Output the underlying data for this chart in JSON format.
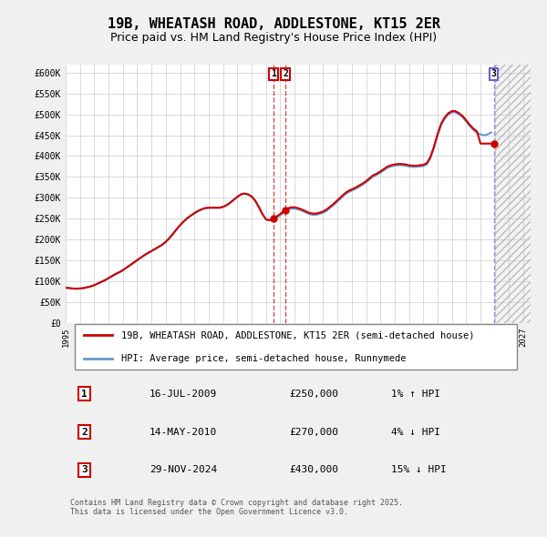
{
  "title": "19B, WHEATASH ROAD, ADDLESTONE, KT15 2ER",
  "subtitle": "Price paid vs. HM Land Registry's House Price Index (HPI)",
  "ylim": [
    0,
    620000
  ],
  "yticks": [
    0,
    50000,
    100000,
    150000,
    200000,
    250000,
    300000,
    350000,
    400000,
    450000,
    500000,
    550000,
    600000
  ],
  "ytick_labels": [
    "£0",
    "£50K",
    "£100K",
    "£150K",
    "£200K",
    "£250K",
    "£300K",
    "£350K",
    "£400K",
    "£450K",
    "£500K",
    "£550K",
    "£600K"
  ],
  "xlim_start": 1995.0,
  "xlim_end": 2027.5,
  "xticks": [
    1995,
    1996,
    1997,
    1998,
    1999,
    2000,
    2001,
    2002,
    2003,
    2004,
    2005,
    2006,
    2007,
    2008,
    2009,
    2010,
    2011,
    2012,
    2013,
    2014,
    2015,
    2016,
    2017,
    2018,
    2019,
    2020,
    2021,
    2022,
    2023,
    2024,
    2025,
    2026,
    2027
  ],
  "bg_color": "#f0f0f0",
  "plot_bg": "#ffffff",
  "grid_color": "#cccccc",
  "hpi_color": "#6699cc",
  "price_color": "#cc0000",
  "future_hatch_color": "#dddddd",
  "transaction1_date": 2009.54,
  "transaction2_date": 2010.37,
  "transaction3_date": 2024.92,
  "transaction1_price": 250000,
  "transaction2_price": 270000,
  "transaction3_price": 430000,
  "legend_label1": "19B, WHEATASH ROAD, ADDLESTONE, KT15 2ER (semi-detached house)",
  "legend_label2": "HPI: Average price, semi-detached house, Runnymede",
  "annotation1_label": "1",
  "annotation1_text": "16-JUL-2009",
  "annotation1_price": "£250,000",
  "annotation1_hpi": "1% ↑ HPI",
  "annotation2_label": "2",
  "annotation2_text": "14-MAY-2010",
  "annotation2_price": "£270,000",
  "annotation2_hpi": "4% ↓ HPI",
  "annotation3_label": "3",
  "annotation3_text": "29-NOV-2024",
  "annotation3_price": "£430,000",
  "annotation3_hpi": "15% ↓ HPI",
  "footer_text": "Contains HM Land Registry data © Crown copyright and database right 2025.\nThis data is licensed under the Open Government Licence v3.0.",
  "hpi_data_x": [
    1995.0,
    1995.25,
    1995.5,
    1995.75,
    1996.0,
    1996.25,
    1996.5,
    1996.75,
    1997.0,
    1997.25,
    1997.5,
    1997.75,
    1998.0,
    1998.25,
    1998.5,
    1998.75,
    1999.0,
    1999.25,
    1999.5,
    1999.75,
    2000.0,
    2000.25,
    2000.5,
    2000.75,
    2001.0,
    2001.25,
    2001.5,
    2001.75,
    2002.0,
    2002.25,
    2002.5,
    2002.75,
    2003.0,
    2003.25,
    2003.5,
    2003.75,
    2004.0,
    2004.25,
    2004.5,
    2004.75,
    2005.0,
    2005.25,
    2005.5,
    2005.75,
    2006.0,
    2006.25,
    2006.5,
    2006.75,
    2007.0,
    2007.25,
    2007.5,
    2007.75,
    2008.0,
    2008.25,
    2008.5,
    2008.75,
    2009.0,
    2009.25,
    2009.5,
    2009.75,
    2010.0,
    2010.25,
    2010.5,
    2010.75,
    2011.0,
    2011.25,
    2011.5,
    2011.75,
    2012.0,
    2012.25,
    2012.5,
    2012.75,
    2013.0,
    2013.25,
    2013.5,
    2013.75,
    2014.0,
    2014.25,
    2014.5,
    2014.75,
    2015.0,
    2015.25,
    2015.5,
    2015.75,
    2016.0,
    2016.25,
    2016.5,
    2016.75,
    2017.0,
    2017.25,
    2017.5,
    2017.75,
    2018.0,
    2018.25,
    2018.5,
    2018.75,
    2019.0,
    2019.25,
    2019.5,
    2019.75,
    2020.0,
    2020.25,
    2020.5,
    2020.75,
    2021.0,
    2021.25,
    2021.5,
    2021.75,
    2022.0,
    2022.25,
    2022.5,
    2022.75,
    2023.0,
    2023.25,
    2023.5,
    2023.75,
    2024.0,
    2024.25,
    2024.5,
    2024.75
  ],
  "hpi_data_y": [
    84000,
    83000,
    82000,
    81500,
    82000,
    83000,
    85000,
    87000,
    90000,
    94000,
    98000,
    102000,
    107000,
    112000,
    117000,
    121000,
    126000,
    132000,
    138000,
    144000,
    150000,
    156000,
    162000,
    167000,
    172000,
    177000,
    182000,
    187000,
    194000,
    203000,
    213000,
    224000,
    234000,
    243000,
    251000,
    257000,
    263000,
    268000,
    272000,
    275000,
    276000,
    276000,
    276000,
    276000,
    278000,
    282000,
    288000,
    295000,
    302000,
    308000,
    310000,
    308000,
    303000,
    293000,
    278000,
    261000,
    248000,
    246000,
    247000,
    252000,
    258000,
    265000,
    271000,
    274000,
    274000,
    272000,
    269000,
    265000,
    261000,
    259000,
    259000,
    261000,
    264000,
    269000,
    276000,
    283000,
    291000,
    299000,
    307000,
    313000,
    317000,
    321000,
    326000,
    331000,
    337000,
    344000,
    351000,
    355000,
    360000,
    366000,
    372000,
    375000,
    377000,
    378000,
    378000,
    377000,
    375000,
    374000,
    374000,
    375000,
    376000,
    380000,
    395000,
    420000,
    450000,
    475000,
    490000,
    500000,
    505000,
    505000,
    500000,
    493000,
    483000,
    472000,
    463000,
    456000,
    452000,
    450000,
    452000,
    457000
  ],
  "price_data_x": [
    1995.0,
    1995.25,
    1995.5,
    1995.75,
    1996.0,
    1996.25,
    1996.5,
    1996.75,
    1997.0,
    1997.25,
    1997.5,
    1997.75,
    1998.0,
    1998.25,
    1998.5,
    1998.75,
    1999.0,
    1999.25,
    1999.5,
    1999.75,
    2000.0,
    2000.25,
    2000.5,
    2000.75,
    2001.0,
    2001.25,
    2001.5,
    2001.75,
    2002.0,
    2002.25,
    2002.5,
    2002.75,
    2003.0,
    2003.25,
    2003.5,
    2003.75,
    2004.0,
    2004.25,
    2004.5,
    2004.75,
    2005.0,
    2005.25,
    2005.5,
    2005.75,
    2006.0,
    2006.25,
    2006.5,
    2006.75,
    2007.0,
    2007.25,
    2007.5,
    2007.75,
    2008.0,
    2008.25,
    2008.5,
    2008.75,
    2009.0,
    2009.25,
    2009.5,
    2009.75,
    2010.0,
    2010.25,
    2010.5,
    2010.75,
    2011.0,
    2011.25,
    2011.5,
    2011.75,
    2012.0,
    2012.25,
    2012.5,
    2012.75,
    2013.0,
    2013.25,
    2013.5,
    2013.75,
    2014.0,
    2014.25,
    2014.5,
    2014.75,
    2015.0,
    2015.25,
    2015.5,
    2015.75,
    2016.0,
    2016.25,
    2016.5,
    2016.75,
    2017.0,
    2017.25,
    2017.5,
    2017.75,
    2018.0,
    2018.25,
    2018.5,
    2018.75,
    2019.0,
    2019.25,
    2019.5,
    2019.75,
    2020.0,
    2020.25,
    2020.5,
    2020.75,
    2021.0,
    2021.25,
    2021.5,
    2021.75,
    2022.0,
    2022.25,
    2022.5,
    2022.75,
    2023.0,
    2023.25,
    2023.5,
    2023.75,
    2024.0,
    2024.25,
    2024.5,
    2024.75
  ],
  "price_data_y": [
    84000,
    83000,
    82000,
    81500,
    82000,
    83000,
    85000,
    87000,
    90000,
    94000,
    98000,
    102000,
    107000,
    112000,
    117000,
    121000,
    126000,
    132000,
    138000,
    144000,
    150000,
    156000,
    162000,
    167000,
    172000,
    177000,
    182000,
    187000,
    194000,
    203000,
    213000,
    224000,
    234000,
    243000,
    251000,
    257000,
    263000,
    268000,
    272000,
    275000,
    276000,
    276000,
    276000,
    276000,
    278000,
    282000,
    288000,
    295000,
    302000,
    308000,
    310000,
    308000,
    303000,
    293000,
    278000,
    261000,
    248000,
    246000,
    250000,
    255000,
    261000,
    268000,
    274000,
    277000,
    277000,
    275000,
    272000,
    268000,
    264000,
    262000,
    262000,
    264000,
    267000,
    272000,
    279000,
    286000,
    294000,
    302000,
    310000,
    316000,
    320000,
    324000,
    329000,
    334000,
    340000,
    347000,
    354000,
    358000,
    363000,
    369000,
    375000,
    378000,
    380000,
    381000,
    381000,
    380000,
    378000,
    377000,
    377000,
    378000,
    379000,
    383000,
    398000,
    423000,
    453000,
    478000,
    493000,
    503000,
    508000,
    508000,
    503000,
    496000,
    486000,
    475000,
    466000,
    459000,
    430000,
    430000,
    430000,
    430000
  ]
}
